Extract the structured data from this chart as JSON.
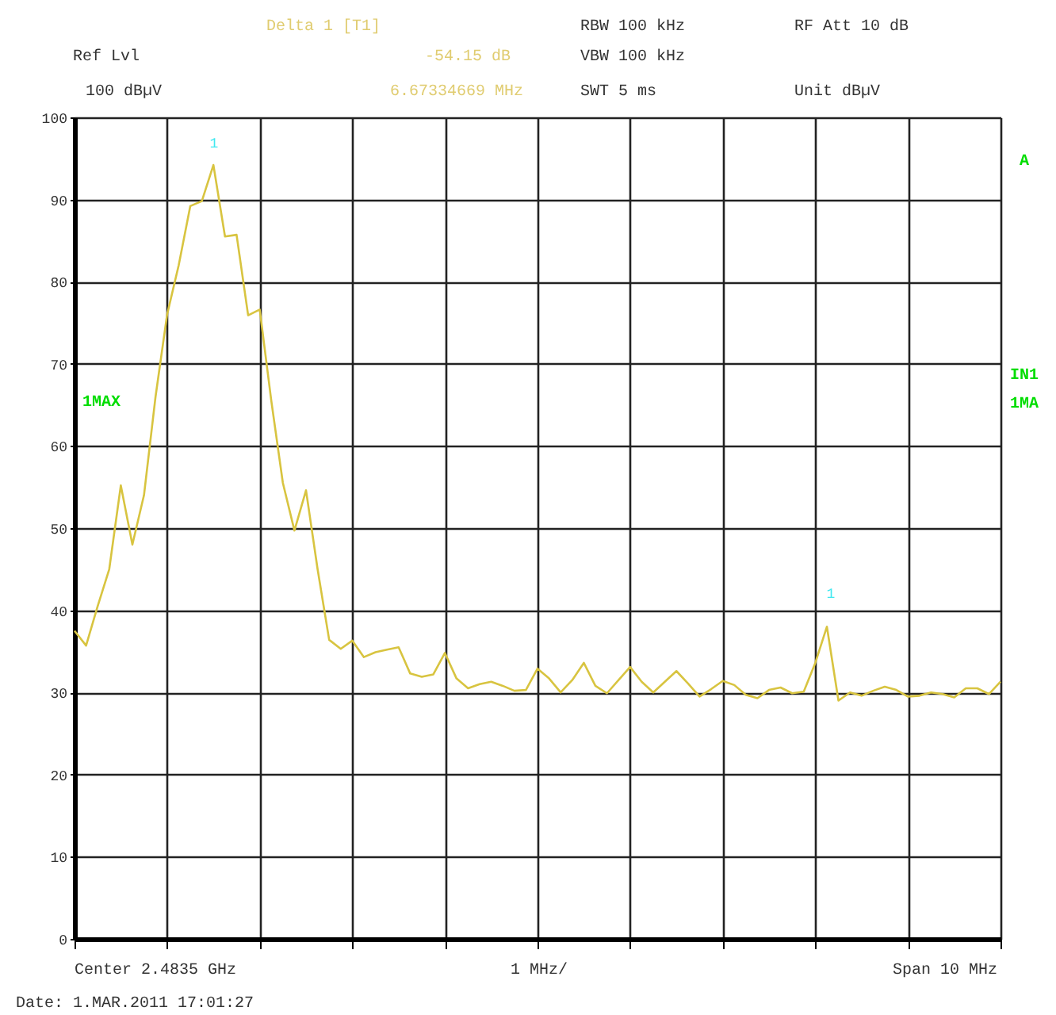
{
  "chart_data": {
    "type": "line",
    "color": "#d8c440",
    "marker": "none",
    "line_style": "solid",
    "grid": true,
    "categories": [
      null,
      null,
      null,
      null,
      null,
      null,
      null,
      null,
      null,
      null,
      null,
      null,
      null,
      null,
      null,
      null,
      null,
      null,
      null,
      null,
      null,
      null,
      null,
      null,
      null,
      null,
      null,
      null,
      null,
      null,
      null,
      null,
      null,
      null,
      null,
      null,
      null,
      null,
      null,
      null,
      null,
      null,
      null,
      null,
      null,
      null,
      null,
      null,
      null,
      null,
      null,
      null,
      null,
      null,
      null,
      null,
      null,
      null,
      null,
      null,
      null,
      null,
      null,
      null,
      null,
      null,
      null,
      null,
      null,
      null,
      null,
      null,
      null,
      null,
      null,
      null,
      null,
      null,
      null,
      null,
      null
    ],
    "values": [
      37.5,
      35.7,
      40.5,
      45,
      55.2,
      48,
      54,
      66,
      76,
      82,
      89.2,
      89.8,
      94.2,
      85.5,
      85.7,
      75.9,
      76.6,
      65.5,
      55.5,
      49.7,
      54.6,
      45,
      36.4,
      35.3,
      36.3,
      34.3,
      34.9,
      35.2,
      35.5,
      32.3,
      31.9,
      32.2,
      34.8,
      31.7,
      30.5,
      31,
      31.3,
      30.8,
      30.2,
      30.3,
      32.9,
      31.7,
      30,
      31.5,
      33.6,
      30.8,
      29.9,
      31.5,
      33.1,
      31.3,
      30,
      31.3,
      32.6,
      31.1,
      29.5,
      30.4,
      31.4,
      30.9,
      29.7,
      29.3,
      30.3,
      30.6,
      29.9,
      30.1,
      33.6,
      38,
      29,
      30,
      29.6,
      30.2,
      30.7,
      30.3,
      29.5,
      29.6,
      30,
      29.8,
      29.4,
      30.5,
      30.5,
      29.8,
      31.3
    ],
    "ylim": [
      0,
      100
    ],
    "yticks": [
      0,
      10,
      20,
      30,
      40,
      50,
      60,
      70,
      80,
      90,
      100
    ],
    "annotations": [
      "Delta 1 [T1]",
      "Ref Lvl",
      "-54.15 dB",
      "100 dBµV",
      "6.67334669 MHz",
      "RBW 100 kHz",
      "VBW 100 kHz",
      "SWT 5 ms",
      "RF Att 10 dB",
      "Unit dBµV",
      "Center 2.4835 GHz",
      "1 MHz/",
      "Span 10 MHz",
      "Date: 1.MAR.2011 17:01:27",
      "1MAX",
      "A",
      "IN1",
      "1MA",
      "1",
      "1"
    ]
  }
}
